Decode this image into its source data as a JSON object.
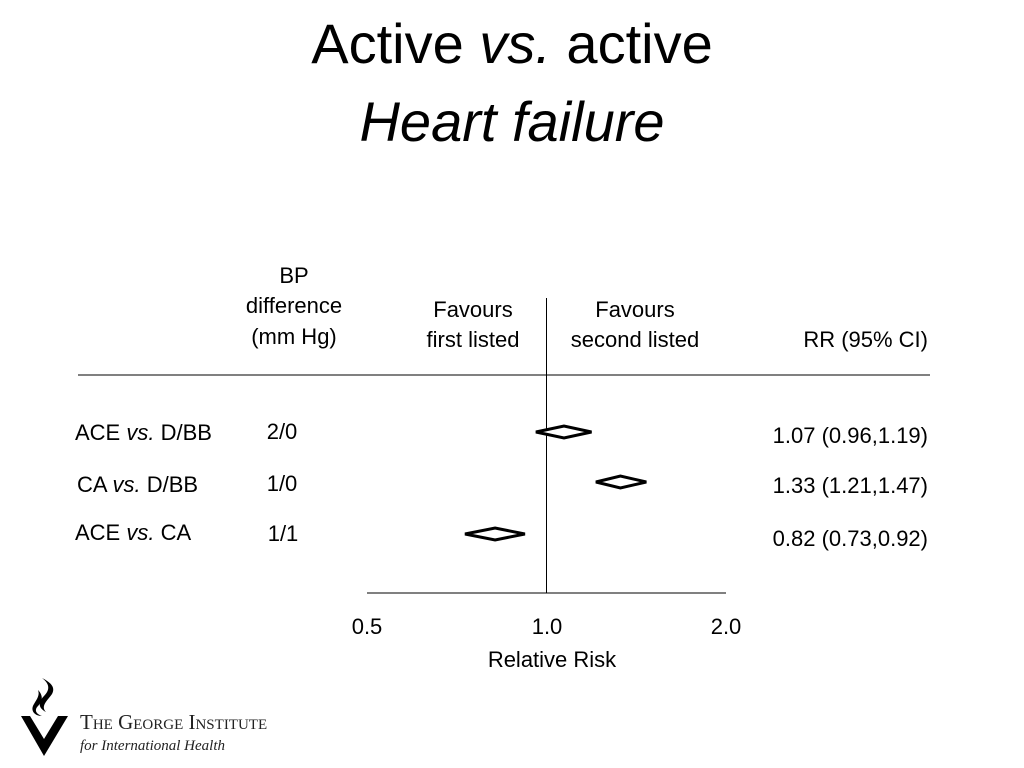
{
  "slide": {
    "title_line1_pre": "Active ",
    "title_line1_vs": "vs.",
    "title_line1_post": " active",
    "title_line2": "Heart failure"
  },
  "logo": {
    "name": "The George Institute",
    "subtitle": "for International Health"
  },
  "chart_data": {
    "type": "forest",
    "header": {
      "bp_line1": "BP",
      "bp_line2": "difference",
      "bp_line3": "(mm Hg)",
      "favours_left_line1": "Favours",
      "favours_left_line2": "first listed",
      "favours_right_line1": "Favours",
      "favours_right_line2": "second listed",
      "rr_header": "RR (95% CI)"
    },
    "rows": [
      {
        "first": "ACE",
        "vs": "vs.",
        "second": "D/BB",
        "bp": "2/0",
        "rr": 1.07,
        "lo": 0.96,
        "hi": 1.19,
        "label": "1.07 (0.96,1.19)"
      },
      {
        "first": "CA",
        "vs": "vs.",
        "second": "D/BB",
        "bp": "1/0",
        "rr": 1.33,
        "lo": 1.21,
        "hi": 1.47,
        "label": "1.33 (1.21,1.47)"
      },
      {
        "first": "ACE",
        "vs": "vs.",
        "second": "CA",
        "bp": "1/1",
        "rr": 0.82,
        "lo": 0.73,
        "hi": 0.92,
        "label": "0.82 (0.73,0.92)"
      }
    ],
    "x_axis": {
      "scale": "log",
      "ticks": [
        "0.5",
        "1.0",
        "2.0"
      ],
      "tick_values": [
        0.5,
        1.0,
        2.0
      ],
      "reference": 1.0,
      "label": "Relative Risk",
      "range": [
        0.5,
        2.0
      ]
    }
  }
}
